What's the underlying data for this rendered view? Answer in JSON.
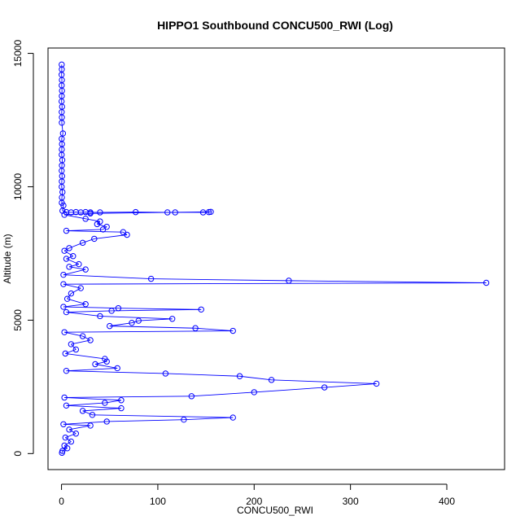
{
  "chart_data": {
    "type": "line",
    "title": "HIPPO1 Southbound CONCU500_RWI (Log)",
    "xlabel": "CONCU500_RWI",
    "ylabel": "Altitude (m)",
    "xlim": [
      -14,
      460
    ],
    "ylim": [
      -600,
      15200
    ],
    "xticks": [
      0,
      100,
      200,
      300,
      400
    ],
    "yticks": [
      0,
      5000,
      10000,
      15000
    ],
    "series": [
      {
        "color": "#0000ff",
        "marker": "open-circle",
        "points": [
          {
            "x": 0.2,
            "y": 14580
          },
          {
            "x": 0.3,
            "y": 14400
          },
          {
            "x": 0.1,
            "y": 14200
          },
          {
            "x": 0.4,
            "y": 14000
          },
          {
            "x": 0.2,
            "y": 13800
          },
          {
            "x": 0.5,
            "y": 13600
          },
          {
            "x": 0.3,
            "y": 13400
          },
          {
            "x": 0.1,
            "y": 13200
          },
          {
            "x": 0.6,
            "y": 13000
          },
          {
            "x": 0.2,
            "y": 12800
          },
          {
            "x": 0.4,
            "y": 12600
          },
          {
            "x": 0.3,
            "y": 12400
          },
          {
            "x": 1.5,
            "y": 12000
          },
          {
            "x": 0.2,
            "y": 11800
          },
          {
            "x": 0.5,
            "y": 11600
          },
          {
            "x": 0.3,
            "y": 11400
          },
          {
            "x": 0.2,
            "y": 11200
          },
          {
            "x": 0.8,
            "y": 11000
          },
          {
            "x": 0.4,
            "y": 10800
          },
          {
            "x": 0.2,
            "y": 10600
          },
          {
            "x": 0.6,
            "y": 10400
          },
          {
            "x": 0.3,
            "y": 10200
          },
          {
            "x": 0.2,
            "y": 10000
          },
          {
            "x": 1.0,
            "y": 9800
          },
          {
            "x": 0.4,
            "y": 9600
          },
          {
            "x": 0.3,
            "y": 9400
          },
          {
            "x": 2.0,
            "y": 9300
          },
          {
            "x": 1.0,
            "y": 9100
          },
          {
            "x": 5,
            "y": 9050
          },
          {
            "x": 10,
            "y": 9040
          },
          {
            "x": 15,
            "y": 9050
          },
          {
            "x": 20,
            "y": 9040
          },
          {
            "x": 25,
            "y": 9050
          },
          {
            "x": 30,
            "y": 9040
          },
          {
            "x": 40,
            "y": 9040
          },
          {
            "x": 77,
            "y": 9050
          },
          {
            "x": 110,
            "y": 9040
          },
          {
            "x": 118,
            "y": 9040
          },
          {
            "x": 147,
            "y": 9040
          },
          {
            "x": 153,
            "y": 9050
          },
          {
            "x": 155,
            "y": 9060
          },
          {
            "x": 30,
            "y": 9000
          },
          {
            "x": 3,
            "y": 8950
          },
          {
            "x": 25,
            "y": 8800
          },
          {
            "x": 40,
            "y": 8700
          },
          {
            "x": 37,
            "y": 8600
          },
          {
            "x": 47,
            "y": 8500
          },
          {
            "x": 43,
            "y": 8400
          },
          {
            "x": 5,
            "y": 8350
          },
          {
            "x": 64,
            "y": 8300
          },
          {
            "x": 68,
            "y": 8200
          },
          {
            "x": 34,
            "y": 8050
          },
          {
            "x": 22,
            "y": 7900
          },
          {
            "x": 8,
            "y": 7700
          },
          {
            "x": 3,
            "y": 7600
          },
          {
            "x": 12,
            "y": 7400
          },
          {
            "x": 5,
            "y": 7300
          },
          {
            "x": 18,
            "y": 7100
          },
          {
            "x": 8,
            "y": 7000
          },
          {
            "x": 25,
            "y": 6900
          },
          {
            "x": 2,
            "y": 6700
          },
          {
            "x": 93,
            "y": 6550
          },
          {
            "x": 236,
            "y": 6480
          },
          {
            "x": 441,
            "y": 6400
          },
          {
            "x": 2,
            "y": 6350
          },
          {
            "x": 20,
            "y": 6200
          },
          {
            "x": 10,
            "y": 6000
          },
          {
            "x": 6,
            "y": 5800
          },
          {
            "x": 25,
            "y": 5600
          },
          {
            "x": 2,
            "y": 5500
          },
          {
            "x": 59,
            "y": 5450
          },
          {
            "x": 145,
            "y": 5400
          },
          {
            "x": 52,
            "y": 5350
          },
          {
            "x": 5,
            "y": 5300
          },
          {
            "x": 40,
            "y": 5150
          },
          {
            "x": 115,
            "y": 5050
          },
          {
            "x": 80,
            "y": 4980
          },
          {
            "x": 73,
            "y": 4900
          },
          {
            "x": 50,
            "y": 4780
          },
          {
            "x": 139,
            "y": 4700
          },
          {
            "x": 178,
            "y": 4600
          },
          {
            "x": 3,
            "y": 4550
          },
          {
            "x": 22,
            "y": 4400
          },
          {
            "x": 30,
            "y": 4250
          },
          {
            "x": 10,
            "y": 4100
          },
          {
            "x": 15,
            "y": 3900
          },
          {
            "x": 4,
            "y": 3750
          },
          {
            "x": 45,
            "y": 3550
          },
          {
            "x": 47,
            "y": 3450
          },
          {
            "x": 35,
            "y": 3350
          },
          {
            "x": 58,
            "y": 3200
          },
          {
            "x": 5,
            "y": 3100
          },
          {
            "x": 108,
            "y": 3000
          },
          {
            "x": 185,
            "y": 2900
          },
          {
            "x": 218,
            "y": 2760
          },
          {
            "x": 327,
            "y": 2620
          },
          {
            "x": 273,
            "y": 2480
          },
          {
            "x": 200,
            "y": 2300
          },
          {
            "x": 135,
            "y": 2150
          },
          {
            "x": 3,
            "y": 2100
          },
          {
            "x": 62,
            "y": 2000
          },
          {
            "x": 45,
            "y": 1900
          },
          {
            "x": 5,
            "y": 1800
          },
          {
            "x": 62,
            "y": 1700
          },
          {
            "x": 22,
            "y": 1600
          },
          {
            "x": 32,
            "y": 1450
          },
          {
            "x": 178,
            "y": 1350
          },
          {
            "x": 127,
            "y": 1270
          },
          {
            "x": 47,
            "y": 1200
          },
          {
            "x": 2,
            "y": 1100
          },
          {
            "x": 30,
            "y": 1050
          },
          {
            "x": 8,
            "y": 900
          },
          {
            "x": 15,
            "y": 750
          },
          {
            "x": 4,
            "y": 600
          },
          {
            "x": 10,
            "y": 450
          },
          {
            "x": 3,
            "y": 300
          },
          {
            "x": 6,
            "y": 200
          },
          {
            "x": 1,
            "y": 100
          },
          {
            "x": 0.5,
            "y": 30
          }
        ]
      }
    ]
  }
}
